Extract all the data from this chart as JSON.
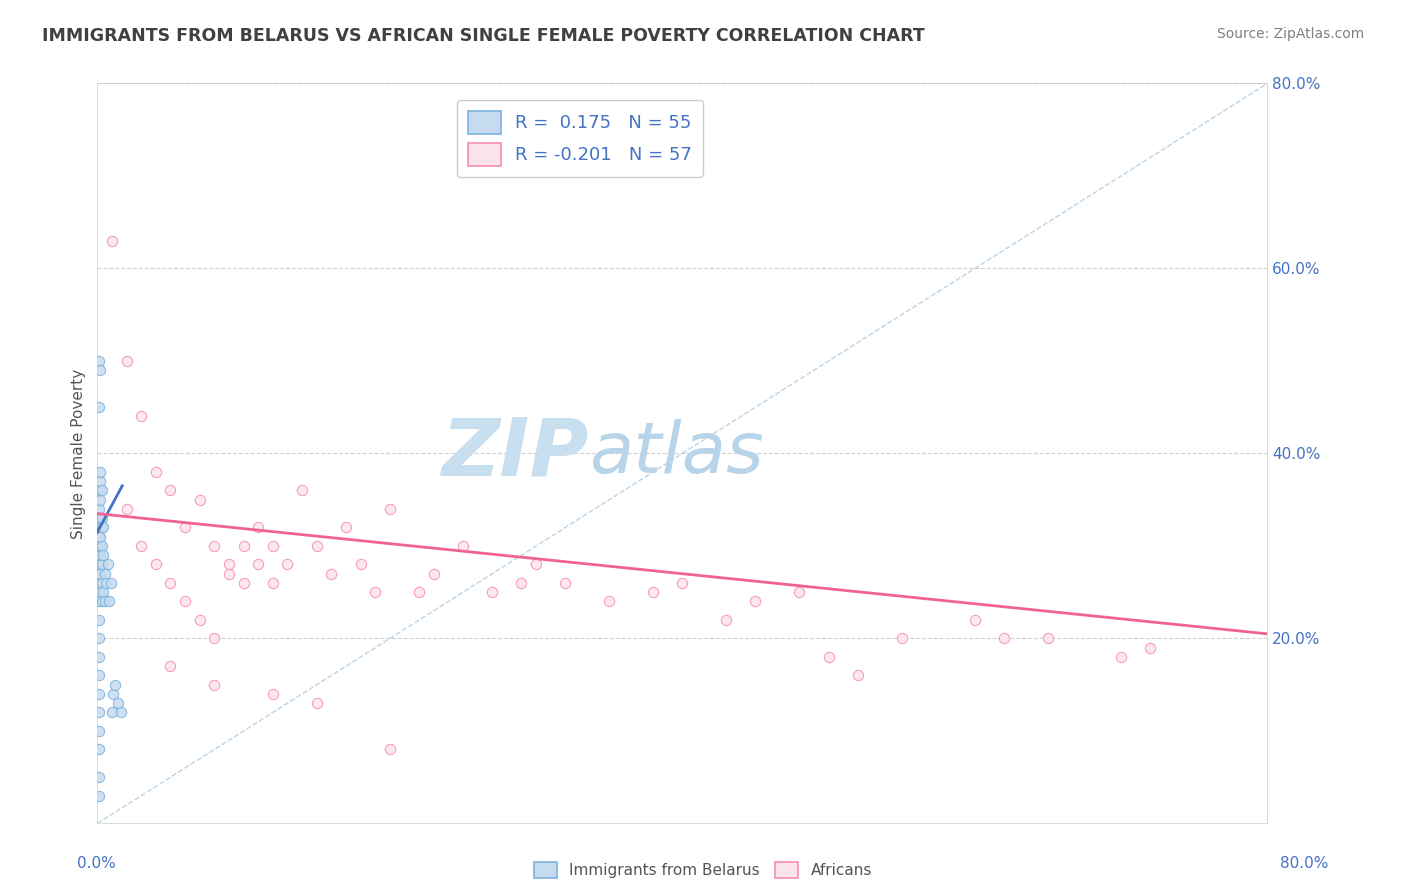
{
  "title": "IMMIGRANTS FROM BELARUS VS AFRICAN SINGLE FEMALE POVERTY CORRELATION CHART",
  "source": "Source: ZipAtlas.com",
  "ylabel": "Single Female Poverty",
  "r_belarus": 0.175,
  "n_belarus": 55,
  "r_africans": -0.201,
  "n_africans": 57,
  "blue_color": "#7cb4e0",
  "blue_fill": "#c6dbef",
  "pink_color": "#f48fb1",
  "pink_fill": "#fce4ec",
  "blue_line_color": "#4472c4",
  "pink_line_color": "#f06292",
  "legend_label_1": "Immigrants from Belarus",
  "legend_label_2": "Africans",
  "watermark_zip": "ZIP",
  "watermark_atlas": "atlas",
  "watermark_color_zip": "#c8dff0",
  "watermark_color_atlas": "#b8d4e8",
  "xlim": [
    0,
    0.8
  ],
  "ylim": [
    0,
    0.8
  ],
  "blue_scatter_x": [
    0.001,
    0.001,
    0.001,
    0.001,
    0.001,
    0.001,
    0.001,
    0.001,
    0.001,
    0.001,
    0.001,
    0.001,
    0.001,
    0.001,
    0.001,
    0.001,
    0.001,
    0.001,
    0.001,
    0.001,
    0.002,
    0.002,
    0.002,
    0.002,
    0.002,
    0.002,
    0.002,
    0.002,
    0.002,
    0.002,
    0.002,
    0.003,
    0.003,
    0.003,
    0.003,
    0.003,
    0.003,
    0.004,
    0.004,
    0.004,
    0.005,
    0.005,
    0.006,
    0.007,
    0.008,
    0.009,
    0.01,
    0.011,
    0.012,
    0.014,
    0.001,
    0.001,
    0.002,
    0.003,
    0.016
  ],
  "blue_scatter_y": [
    0.05,
    0.08,
    0.1,
    0.12,
    0.14,
    0.16,
    0.18,
    0.2,
    0.22,
    0.24,
    0.26,
    0.27,
    0.28,
    0.29,
    0.3,
    0.31,
    0.32,
    0.33,
    0.34,
    0.5,
    0.25,
    0.27,
    0.28,
    0.29,
    0.3,
    0.31,
    0.33,
    0.35,
    0.36,
    0.37,
    0.49,
    0.24,
    0.26,
    0.28,
    0.3,
    0.32,
    0.33,
    0.25,
    0.29,
    0.32,
    0.24,
    0.27,
    0.26,
    0.28,
    0.24,
    0.26,
    0.12,
    0.14,
    0.15,
    0.13,
    0.03,
    0.45,
    0.38,
    0.36,
    0.12
  ],
  "pink_scatter_x": [
    0.01,
    0.02,
    0.02,
    0.03,
    0.03,
    0.04,
    0.04,
    0.05,
    0.05,
    0.06,
    0.06,
    0.07,
    0.07,
    0.08,
    0.08,
    0.09,
    0.09,
    0.1,
    0.1,
    0.11,
    0.11,
    0.12,
    0.12,
    0.13,
    0.14,
    0.15,
    0.16,
    0.17,
    0.18,
    0.19,
    0.2,
    0.22,
    0.23,
    0.25,
    0.27,
    0.29,
    0.3,
    0.32,
    0.35,
    0.38,
    0.4,
    0.43,
    0.45,
    0.48,
    0.5,
    0.52,
    0.55,
    0.6,
    0.62,
    0.65,
    0.7,
    0.72,
    0.05,
    0.08,
    0.12,
    0.15,
    0.2
  ],
  "pink_scatter_y": [
    0.63,
    0.5,
    0.34,
    0.44,
    0.3,
    0.38,
    0.28,
    0.36,
    0.26,
    0.32,
    0.24,
    0.35,
    0.22,
    0.3,
    0.2,
    0.27,
    0.28,
    0.26,
    0.3,
    0.28,
    0.32,
    0.26,
    0.3,
    0.28,
    0.36,
    0.3,
    0.27,
    0.32,
    0.28,
    0.25,
    0.34,
    0.25,
    0.27,
    0.3,
    0.25,
    0.26,
    0.28,
    0.26,
    0.24,
    0.25,
    0.26,
    0.22,
    0.24,
    0.25,
    0.18,
    0.16,
    0.2,
    0.22,
    0.2,
    0.2,
    0.18,
    0.19,
    0.17,
    0.15,
    0.14,
    0.13,
    0.08
  ],
  "grid_color": "#cccccc",
  "axis_color": "#4472c4",
  "title_color": "#404040",
  "source_color": "#808080",
  "yticks": [
    0.2,
    0.4,
    0.6,
    0.8
  ],
  "xtick_labels_off": true,
  "blue_trend_x0": 0.0,
  "blue_trend_y0": 0.315,
  "blue_trend_x1": 0.017,
  "blue_trend_y1": 0.365,
  "pink_trend_x0": 0.0,
  "pink_trend_y0": 0.335,
  "pink_trend_x1": 0.8,
  "pink_trend_y1": 0.205
}
